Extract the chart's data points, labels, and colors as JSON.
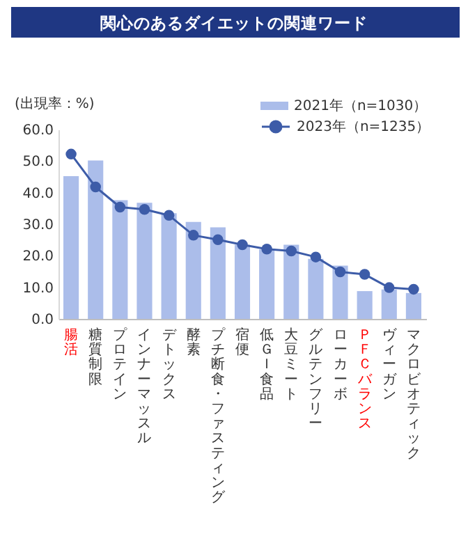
{
  "chart_data": {
    "type": "bar",
    "title": "関心のあるダイエットの関連ワード",
    "ylabel": "(出現率：%)",
    "categories": [
      "腸活",
      "糖質制限",
      "プロテイン",
      "インナーマッスル",
      "デトックス",
      "酵素",
      "プチ断食・ファスティング",
      "宿便",
      "低ＧＩ食品",
      "大豆ミート",
      "グルテンフリー",
      "ローカーボ",
      "ＰＦＣバランス",
      "ヴィーガン",
      "マクロビオティック"
    ],
    "series": [
      {
        "name": "2021年（n=1030）",
        "color": "#abbdea",
        "values": [
          45.2,
          50.2,
          37.6,
          36.8,
          33.5,
          30.7,
          29.0,
          23.5,
          22.0,
          23.5,
          19.0,
          16.9,
          8.8,
          9.3,
          8.2
        ]
      },
      {
        "name": "2023年（n=1235）",
        "type": "line",
        "color": "#3d5ca8",
        "values": [
          52.2,
          41.8,
          35.4,
          34.7,
          32.8,
          26.5,
          25.1,
          23.5,
          22.1,
          21.5,
          19.6,
          14.9,
          14.1,
          9.9,
          9.4
        ]
      }
    ],
    "ylim": [
      0,
      60
    ],
    "yticks": [
      {
        "value": 0,
        "label": "0.0"
      },
      {
        "value": 10,
        "label": "10.0"
      },
      {
        "value": 20,
        "label": "20.0"
      },
      {
        "value": 30,
        "label": "30.0"
      },
      {
        "value": 40,
        "label": "40.0"
      },
      {
        "value": 50,
        "label": "50.0"
      },
      {
        "value": 60,
        "label": "60.0"
      }
    ],
    "legend": "top right",
    "marker": "circle",
    "line_style": "solid"
  }
}
